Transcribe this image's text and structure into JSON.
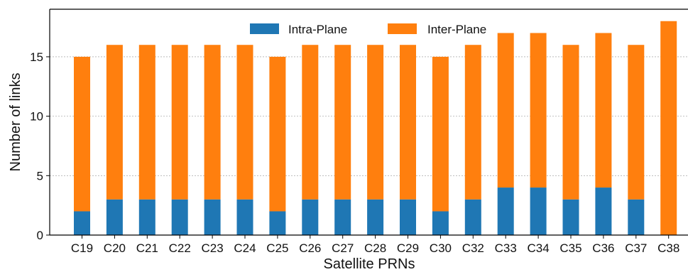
{
  "chart_data": {
    "type": "bar",
    "stacked": true,
    "xlabel": "Satellite PRNs",
    "ylabel": "Number of links",
    "categories": [
      "C19",
      "C20",
      "C21",
      "C22",
      "C23",
      "C24",
      "C25",
      "C26",
      "C27",
      "C28",
      "C29",
      "C30",
      "C32",
      "C33",
      "C34",
      "C35",
      "C36",
      "C37",
      "C38"
    ],
    "series": [
      {
        "name": "Intra-Plane",
        "color": "#1f77b4",
        "values": [
          2,
          3,
          3,
          3,
          3,
          3,
          2,
          3,
          3,
          3,
          3,
          2,
          3,
          4,
          4,
          3,
          4,
          3,
          0
        ]
      },
      {
        "name": "Inter-Plane",
        "color": "#ff7f0e",
        "values": [
          13,
          13,
          13,
          13,
          13,
          13,
          13,
          13,
          13,
          13,
          13,
          13,
          13,
          13,
          13,
          13,
          13,
          13,
          18
        ]
      }
    ],
    "ylim": [
      0,
      19
    ],
    "yticks": [
      0,
      5,
      10,
      15
    ],
    "grid": "horizontal-dashed",
    "legend": "top-center"
  }
}
